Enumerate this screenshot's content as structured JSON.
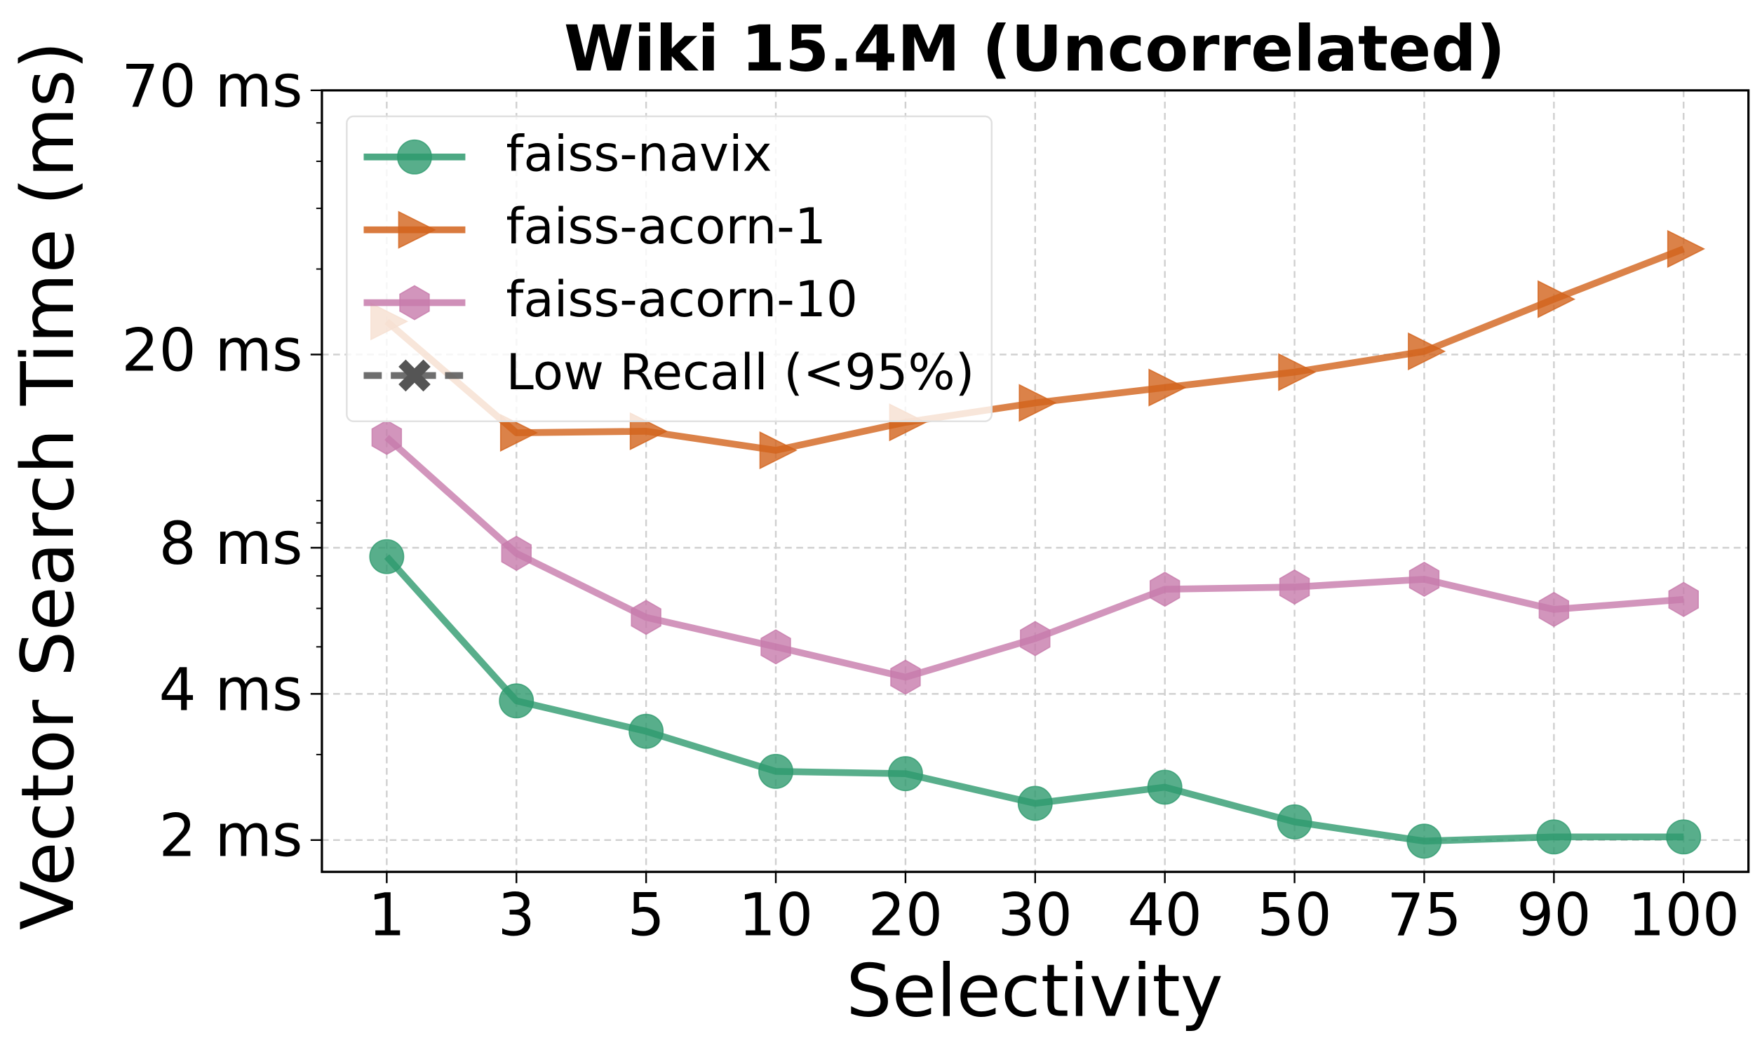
{
  "chart_data": {
    "type": "line",
    "title": "Wiki 15.4M (Uncorrelated)",
    "xlabel": "Selectivity",
    "ylabel": "Vector Search Time (ms)",
    "categories": [
      "1",
      "3",
      "5",
      "10",
      "20",
      "30",
      "40",
      "50",
      "75",
      "90",
      "100"
    ],
    "yscale": "log",
    "ylim": [
      1.72,
      70
    ],
    "yticks": [
      {
        "value": 2,
        "label": "2 ms"
      },
      {
        "value": 4,
        "label": "4 ms"
      },
      {
        "value": 8,
        "label": "8 ms"
      },
      {
        "value": 20,
        "label": "20 ms"
      },
      {
        "value": 70,
        "label": "70 ms"
      }
    ],
    "yminorticks": [
      3,
      5,
      6,
      7,
      9,
      10,
      30,
      40,
      50,
      60
    ],
    "grid": true,
    "legend": "upper left",
    "series": [
      {
        "name": "faiss-navix",
        "color": "#2e9a6e",
        "marker": "circle",
        "values": [
          7.67,
          3.87,
          3.35,
          2.77,
          2.74,
          2.38,
          2.57,
          2.18,
          1.99,
          2.03,
          2.03
        ]
      },
      {
        "name": "faiss-acorn-1",
        "color": "#d2631c",
        "marker": "triangle-right",
        "values": [
          23.4,
          13.8,
          13.9,
          12.7,
          14.5,
          15.9,
          17.1,
          18.4,
          20.3,
          26.0,
          33.0
        ]
      },
      {
        "name": "faiss-acorn-10",
        "color": "#c77bab",
        "marker": "hexagon",
        "values": [
          13.5,
          7.79,
          5.75,
          5.0,
          4.33,
          5.2,
          6.57,
          6.64,
          6.89,
          5.97,
          6.26
        ]
      }
    ],
    "legend_extra": [
      {
        "name": "Low Recall (<95%)",
        "color": "#555555",
        "marker": "x",
        "linestyle": "dashed"
      }
    ]
  }
}
